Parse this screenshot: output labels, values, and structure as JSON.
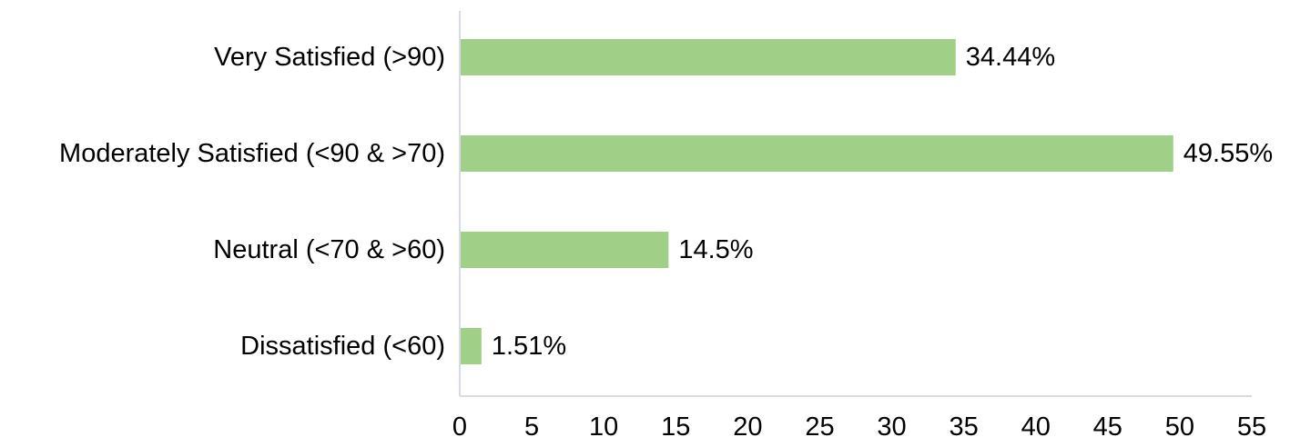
{
  "chart_data": {
    "type": "bar",
    "orientation": "horizontal",
    "categories": [
      "Very Satisfied (>90)",
      "Moderately Satisfied (<90 & >70)",
      "Neutral (<70 & >60)",
      "Dissatisfied (<60)"
    ],
    "values": [
      34.44,
      49.55,
      14.5,
      1.51
    ],
    "data_labels": [
      "34.44%",
      "49.55%",
      "14.5%",
      "1.51%"
    ],
    "xlim": [
      0,
      55
    ],
    "x_ticks": [
      0,
      5,
      10,
      15,
      20,
      25,
      30,
      35,
      40,
      45,
      50,
      55
    ],
    "bar_color": "#a0d088",
    "grid": false,
    "legend": "none"
  }
}
